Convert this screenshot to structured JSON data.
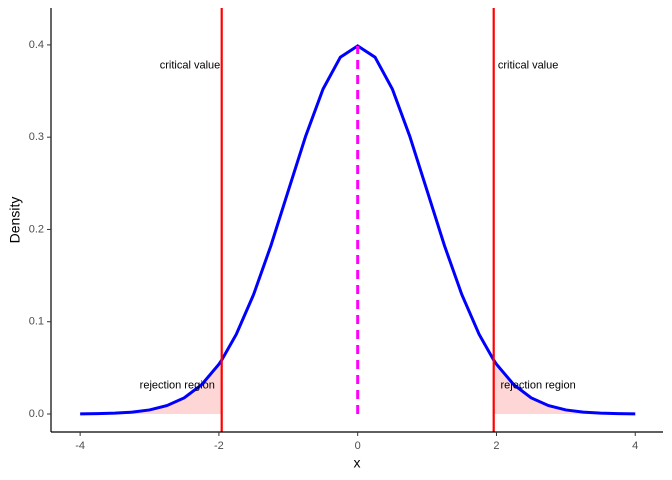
{
  "chart_data": {
    "type": "line",
    "x_label": "x",
    "y_label": "Density",
    "x": [
      -4,
      -3.75,
      -3.5,
      -3.25,
      -3,
      -2.75,
      -2.5,
      -2.25,
      -2,
      -1.96,
      -1.75,
      -1.5,
      -1.25,
      -1,
      -0.75,
      -0.5,
      -0.25,
      0,
      0.25,
      0.5,
      0.75,
      1,
      1.25,
      1.5,
      1.75,
      1.96,
      2,
      2.25,
      2.5,
      2.75,
      3,
      3.25,
      3.5,
      3.75,
      4
    ],
    "series": [
      {
        "color": "#0000ff",
        "values": [
          0.0001,
          0.0004,
          0.0009,
          0.002,
          0.0044,
          0.0091,
          0.0175,
          0.0317,
          0.054,
          0.0584,
          0.0863,
          0.1295,
          0.1826,
          0.242,
          0.3011,
          0.3521,
          0.3867,
          0.3989,
          0.3867,
          0.3521,
          0.3011,
          0.242,
          0.1826,
          0.1295,
          0.0863,
          0.0584,
          0.054,
          0.0317,
          0.0175,
          0.0091,
          0.0044,
          0.002,
          0.0009,
          0.0004,
          0.0001
        ]
      }
    ],
    "shaded": [
      {
        "from": -4,
        "to": -1.96,
        "color": "#ffd6d6"
      },
      {
        "from": 1.96,
        "to": 4,
        "color": "#ffd6d6"
      }
    ],
    "vlines": [
      {
        "x": -1.96,
        "color": "#ff0000"
      },
      {
        "x": 1.96,
        "color": "#ff0000"
      },
      {
        "x": 0,
        "y": [
          0,
          0.3989
        ],
        "color": "#ff00ff",
        "dashed": true
      }
    ],
    "annotations": [
      {
        "text": "critical value",
        "x": -1.98,
        "y": 0.3775,
        "anchor": "end"
      },
      {
        "text": "critical value",
        "x": 2.02,
        "y": 0.3775,
        "anchor": "start"
      },
      {
        "text": "rejection region",
        "x": -2.6,
        "y": 0.031,
        "anchor": "middle"
      },
      {
        "text": "rejection region",
        "x": 2.6,
        "y": 0.031,
        "anchor": "middle"
      }
    ],
    "xlim": [
      -4.42,
      4.4
    ],
    "ylim": [
      -0.0195,
      0.44
    ],
    "xticks": [
      -4,
      -2,
      0,
      2,
      4
    ],
    "yticks": [
      {
        "value": 0,
        "label": "0.0"
      },
      0.1,
      0.2,
      0.3,
      0.4
    ],
    "grid": false
  }
}
